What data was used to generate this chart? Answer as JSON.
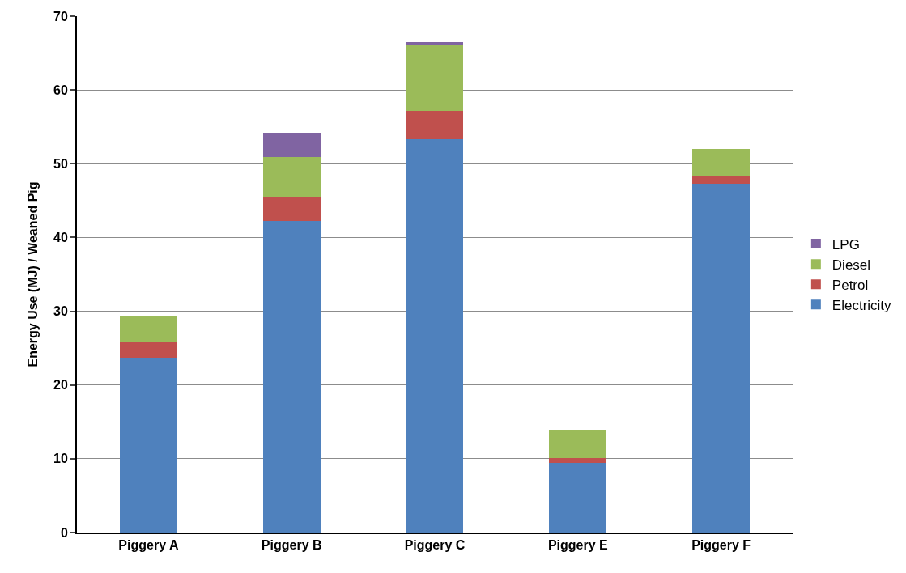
{
  "chart_data": {
    "type": "bar",
    "stacked": true,
    "ylabel": "Energy Use (MJ) / Weaned Pig",
    "categories": [
      "Piggery A",
      "Piggery B",
      "Piggery C",
      "Piggery E",
      "Piggery F"
    ],
    "series": [
      {
        "name": "Electricity",
        "color": "#4f81bd",
        "values": [
          23.7,
          42.2,
          53.3,
          9.4,
          47.3
        ]
      },
      {
        "name": "Petrol",
        "color": "#c0504d",
        "values": [
          2.2,
          3.2,
          3.9,
          0.7,
          1.0
        ]
      },
      {
        "name": "Diesel",
        "color": "#9bbb59",
        "values": [
          3.4,
          5.5,
          8.9,
          3.8,
          3.7
        ]
      },
      {
        "name": "LPG",
        "color": "#8064a2",
        "values": [
          0,
          3.3,
          0.4,
          0,
          0
        ]
      }
    ],
    "ylim": [
      0,
      70
    ],
    "yticks": [
      0,
      10,
      20,
      30,
      40,
      50,
      60,
      70
    ],
    "grid": "y",
    "legend": "right"
  }
}
